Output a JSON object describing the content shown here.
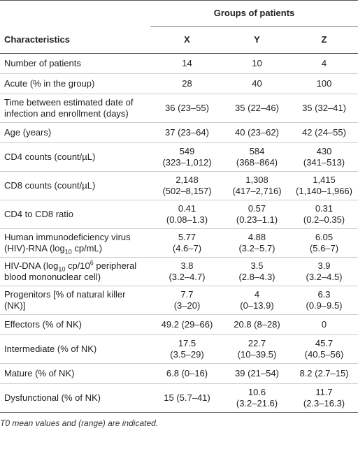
{
  "table": {
    "group_header": "Groups of patients",
    "columns": [
      "Characteristics",
      "X",
      "Y",
      "Z"
    ],
    "rows": [
      {
        "label": "Number of patients",
        "cells": [
          [
            "14"
          ],
          [
            "10"
          ],
          [
            "4"
          ]
        ]
      },
      {
        "label": "Acute (% in the group)",
        "cells": [
          [
            "28"
          ],
          [
            "40"
          ],
          [
            "100"
          ]
        ]
      },
      {
        "label": "Time between estimated date of infection and enrollment (days)",
        "cells": [
          [
            "36 (23–55)"
          ],
          [
            "35 (22–46)"
          ],
          [
            "35 (32–41)"
          ]
        ]
      },
      {
        "label": "Age (years)",
        "cells": [
          [
            "37 (23–64)"
          ],
          [
            "40 (23–62)"
          ],
          [
            "42 (24–55)"
          ]
        ]
      },
      {
        "label": "CD4 counts (count/µL)",
        "cells": [
          [
            "549",
            "(323–1,012)"
          ],
          [
            "584",
            "(368–864)"
          ],
          [
            "430",
            "(341–513)"
          ]
        ]
      },
      {
        "label": "CD8 counts (count/µL)",
        "cells": [
          [
            "2,148",
            "(502–8,157)"
          ],
          [
            "1,308",
            "(417–2,716)"
          ],
          [
            "1,415",
            "(1,140–1,966)"
          ]
        ]
      },
      {
        "label": "CD4 to CD8 ratio",
        "cells": [
          [
            "0.41",
            "(0.08–1.3)"
          ],
          [
            "0.57",
            "(0.23–1.1)"
          ],
          [
            "0.31",
            "(0.2–0.35)"
          ]
        ]
      },
      {
        "label": [
          {
            "text": "Human immunodeficiency virus (HIV)-RNA (log"
          },
          {
            "sub": "10"
          },
          {
            "text": " cp/mL)"
          }
        ],
        "cells": [
          [
            "5.77",
            "(4.6–7)"
          ],
          [
            "4.88",
            "(3.2–5.7)"
          ],
          [
            "6.05",
            "(5.6–7)"
          ]
        ]
      },
      {
        "label": [
          {
            "text": "HIV-DNA (log"
          },
          {
            "sub": "10"
          },
          {
            "text": " cp/10"
          },
          {
            "sup": "6"
          },
          {
            "text": " peripheral blood mononuclear cell)"
          }
        ],
        "cells": [
          [
            "3.8",
            "(3.2–4.7)"
          ],
          [
            "3.5",
            "(2.8–4.3)"
          ],
          [
            "3.9",
            "(3.2–4.5)"
          ]
        ]
      },
      {
        "label": "Progenitors [% of natural killer (NK)]",
        "cells": [
          [
            "7.7",
            "(3–20)"
          ],
          [
            "4",
            "(0–13.9)"
          ],
          [
            "6.3",
            "(0.9–9.5)"
          ]
        ]
      },
      {
        "label": "Effectors (% of NK)",
        "cells": [
          [
            "49.2 (29–66)"
          ],
          [
            "20.8 (8–28)"
          ],
          [
            "0"
          ]
        ]
      },
      {
        "label": "Intermediate (% of NK)",
        "cells": [
          [
            "17.5",
            "(3.5–29)"
          ],
          [
            "22.7",
            "(10–39.5)"
          ],
          [
            "45.7",
            "(40.5–56)"
          ]
        ]
      },
      {
        "label": "Mature (% of NK)",
        "cells": [
          [
            "6.8 (0–16)"
          ],
          [
            "39 (21–54)"
          ],
          [
            "8.2 (2.7–15)"
          ]
        ]
      },
      {
        "label": "Dysfunctional (% of NK)",
        "cells": [
          [
            "15 (5.7–41)"
          ],
          [
            "10.6",
            "(3.2–21.6)"
          ],
          [
            "11.7",
            "(2.3–16.3)"
          ]
        ]
      }
    ],
    "footnote": "T0 mean values and (range) are indicated."
  }
}
